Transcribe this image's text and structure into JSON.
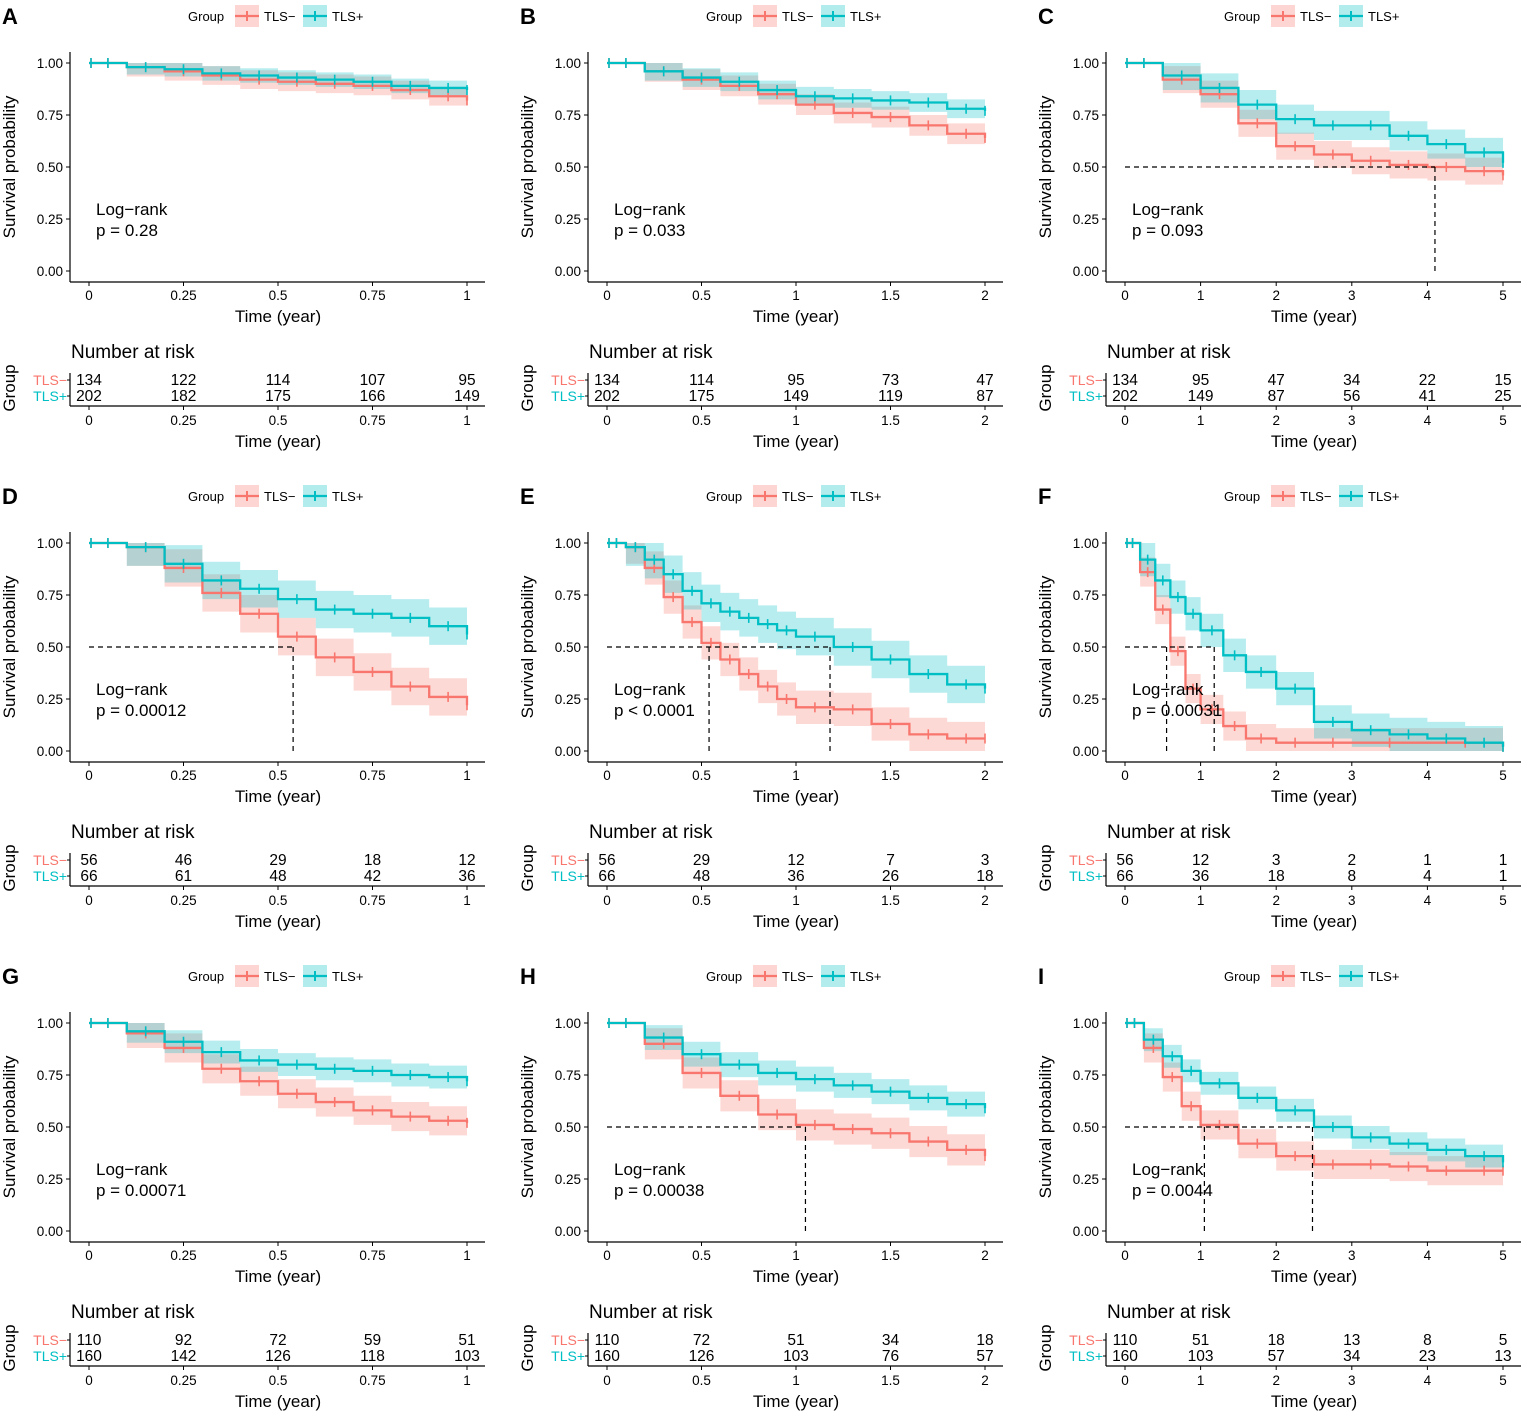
{
  "colors": {
    "tls_neg": "#F8766D",
    "tls_pos": "#00BFC4",
    "tls_neg_band": "#F8766D",
    "tls_pos_band": "#00BFC4"
  },
  "legend": {
    "title": "Group",
    "labels": [
      "TLS−",
      "TLS+"
    ]
  },
  "common": {
    "ylabel": "Survival probability",
    "xlabel": "Time (year)",
    "risk_title": "Number at risk",
    "risk_group_label": "Group",
    "risk_row_labels": [
      "TLS−",
      "TLS+"
    ],
    "y_ticks": [
      "1.00",
      "0.75",
      "0.50",
      "0.25",
      "0.00"
    ],
    "y_tick_values": [
      1.0,
      0.75,
      0.5,
      0.25,
      0.0
    ]
  },
  "chart_data": [
    {
      "panel": "A",
      "type": "line",
      "xlabel": "Time (year)",
      "ylabel": "Survival probability",
      "xlim": [
        0,
        1
      ],
      "ylim": [
        0,
        1
      ],
      "x_ticks": [
        "0",
        "0.25",
        "0.5",
        "0.75",
        "1"
      ],
      "x_tick_values": [
        0,
        0.25,
        0.5,
        0.75,
        1
      ],
      "logrank_label": "Log−rank",
      "p_text": "p = 0.28",
      "medians": [],
      "series": [
        {
          "name": "TLS−",
          "x": [
            0,
            0.1,
            0.2,
            0.3,
            0.4,
            0.5,
            0.6,
            0.7,
            0.8,
            0.9,
            1.0
          ],
          "y": [
            1.0,
            0.98,
            0.96,
            0.94,
            0.92,
            0.91,
            0.9,
            0.89,
            0.87,
            0.84,
            0.82
          ],
          "band": 0.045
        },
        {
          "name": "TLS+",
          "x": [
            0,
            0.1,
            0.2,
            0.3,
            0.4,
            0.5,
            0.6,
            0.7,
            0.8,
            0.9,
            1.0
          ],
          "y": [
            1.0,
            0.98,
            0.97,
            0.95,
            0.94,
            0.93,
            0.92,
            0.91,
            0.89,
            0.88,
            0.87
          ],
          "band": 0.035
        }
      ],
      "risk": {
        "TLS−": [
          "134",
          "122",
          "114",
          "107",
          "95"
        ],
        "TLS+": [
          "202",
          "182",
          "175",
          "166",
          "149"
        ]
      }
    },
    {
      "panel": "B",
      "type": "line",
      "xlabel": "Time (year)",
      "ylabel": "Survival probability",
      "xlim": [
        0,
        2
      ],
      "ylim": [
        0,
        1
      ],
      "x_ticks": [
        "0",
        "0.5",
        "1",
        "1.5",
        "2"
      ],
      "x_tick_values": [
        0,
        0.5,
        1,
        1.5,
        2
      ],
      "logrank_label": "Log−rank",
      "p_text": "p = 0.033",
      "medians": [],
      "series": [
        {
          "name": "TLS−",
          "x": [
            0,
            0.2,
            0.4,
            0.6,
            0.8,
            1.0,
            1.2,
            1.4,
            1.6,
            1.8,
            2.0
          ],
          "y": [
            1.0,
            0.96,
            0.92,
            0.89,
            0.85,
            0.8,
            0.76,
            0.74,
            0.7,
            0.66,
            0.64
          ],
          "band": 0.05
        },
        {
          "name": "TLS+",
          "x": [
            0,
            0.2,
            0.4,
            0.6,
            0.8,
            1.0,
            1.2,
            1.4,
            1.6,
            1.8,
            2.0
          ],
          "y": [
            1.0,
            0.96,
            0.93,
            0.91,
            0.87,
            0.84,
            0.83,
            0.82,
            0.81,
            0.78,
            0.77
          ],
          "band": 0.045
        }
      ],
      "risk": {
        "TLS−": [
          "134",
          "114",
          "95",
          "73",
          "47"
        ],
        "TLS+": [
          "202",
          "175",
          "149",
          "119",
          "87"
        ]
      }
    },
    {
      "panel": "C",
      "type": "line",
      "xlabel": "Time (year)",
      "ylabel": "Survival probability",
      "xlim": [
        0,
        5
      ],
      "ylim": [
        0,
        1
      ],
      "x_ticks": [
        "0",
        "1",
        "2",
        "3",
        "4",
        "5"
      ],
      "x_tick_values": [
        0,
        1,
        2,
        3,
        4,
        5
      ],
      "logrank_label": "Log−rank",
      "p_text": "p = 0.093",
      "medians": [
        4.1
      ],
      "series": [
        {
          "name": "TLS−",
          "x": [
            0,
            0.5,
            1.0,
            1.5,
            2.0,
            2.5,
            3.0,
            3.5,
            4.0,
            4.5,
            5.0
          ],
          "y": [
            1.0,
            0.92,
            0.85,
            0.71,
            0.6,
            0.56,
            0.53,
            0.51,
            0.5,
            0.48,
            0.46
          ],
          "band": 0.065
        },
        {
          "name": "TLS+",
          "x": [
            0,
            0.5,
            1.0,
            1.5,
            2.0,
            2.5,
            3.0,
            3.5,
            4.0,
            4.5,
            5.0
          ],
          "y": [
            1.0,
            0.94,
            0.88,
            0.8,
            0.73,
            0.7,
            0.7,
            0.65,
            0.61,
            0.57,
            0.52
          ],
          "band": 0.07
        }
      ],
      "risk": {
        "TLS−": [
          "134",
          "95",
          "47",
          "34",
          "22",
          "15"
        ],
        "TLS+": [
          "202",
          "149",
          "87",
          "56",
          "41",
          "25"
        ]
      }
    },
    {
      "panel": "D",
      "type": "line",
      "xlabel": "Time (year)",
      "ylabel": "Survival probability",
      "xlim": [
        0,
        1
      ],
      "ylim": [
        0,
        1
      ],
      "x_ticks": [
        "0",
        "0.25",
        "0.5",
        "0.75",
        "1"
      ],
      "x_tick_values": [
        0,
        0.25,
        0.5,
        0.75,
        1
      ],
      "logrank_label": "Log−rank",
      "p_text": "p = 0.00012",
      "medians": [
        0.54
      ],
      "series": [
        {
          "name": "TLS−",
          "x": [
            0,
            0.1,
            0.2,
            0.3,
            0.4,
            0.5,
            0.6,
            0.7,
            0.8,
            0.9,
            1.0
          ],
          "y": [
            1.0,
            0.98,
            0.88,
            0.76,
            0.66,
            0.55,
            0.45,
            0.38,
            0.31,
            0.26,
            0.22
          ],
          "band": 0.09
        },
        {
          "name": "TLS+",
          "x": [
            0,
            0.1,
            0.2,
            0.3,
            0.4,
            0.5,
            0.6,
            0.7,
            0.8,
            0.9,
            1.0
          ],
          "y": [
            1.0,
            0.98,
            0.9,
            0.82,
            0.78,
            0.73,
            0.68,
            0.66,
            0.64,
            0.6,
            0.56
          ],
          "band": 0.09
        }
      ],
      "risk": {
        "TLS−": [
          "56",
          "46",
          "29",
          "18",
          "12"
        ],
        "TLS+": [
          "66",
          "61",
          "48",
          "42",
          "36"
        ]
      }
    },
    {
      "panel": "E",
      "type": "line",
      "xlabel": "Time (year)",
      "ylabel": "Survival probability",
      "xlim": [
        0,
        2
      ],
      "ylim": [
        0,
        1
      ],
      "x_ticks": [
        "0",
        "0.5",
        "1",
        "1.5",
        "2"
      ],
      "x_tick_values": [
        0,
        0.5,
        1,
        1.5,
        2
      ],
      "logrank_label": "Log−rank",
      "p_text": "p < 0.0001",
      "medians": [
        0.54,
        1.18
      ],
      "series": [
        {
          "name": "TLS−",
          "x": [
            0,
            0.1,
            0.2,
            0.3,
            0.4,
            0.5,
            0.6,
            0.7,
            0.8,
            0.9,
            1.0,
            1.2,
            1.4,
            1.6,
            1.8,
            2.0
          ],
          "y": [
            1.0,
            0.98,
            0.88,
            0.74,
            0.62,
            0.52,
            0.44,
            0.37,
            0.31,
            0.25,
            0.21,
            0.2,
            0.13,
            0.08,
            0.06,
            0.06
          ],
          "band": 0.08
        },
        {
          "name": "TLS+",
          "x": [
            0,
            0.1,
            0.2,
            0.3,
            0.4,
            0.5,
            0.6,
            0.7,
            0.8,
            0.9,
            1.0,
            1.2,
            1.4,
            1.6,
            1.8,
            2.0
          ],
          "y": [
            1.0,
            0.98,
            0.92,
            0.85,
            0.77,
            0.71,
            0.67,
            0.64,
            0.61,
            0.58,
            0.55,
            0.5,
            0.44,
            0.37,
            0.32,
            0.3
          ],
          "band": 0.09
        }
      ],
      "risk": {
        "TLS−": [
          "56",
          "29",
          "12",
          "7",
          "3"
        ],
        "TLS+": [
          "66",
          "48",
          "36",
          "26",
          "18"
        ]
      }
    },
    {
      "panel": "F",
      "type": "line",
      "xlabel": "Time (year)",
      "ylabel": "Survival probability",
      "xlim": [
        0,
        5
      ],
      "ylim": [
        0,
        1
      ],
      "x_ticks": [
        "0",
        "1",
        "2",
        "3",
        "4",
        "5"
      ],
      "x_tick_values": [
        0,
        1,
        2,
        3,
        4,
        5
      ],
      "logrank_label": "Log−rank",
      "p_text": "p = 0.00031",
      "medians": [
        0.55,
        1.18
      ],
      "series": [
        {
          "name": "TLS−",
          "x": [
            0,
            0.2,
            0.4,
            0.6,
            0.8,
            1.0,
            1.3,
            1.6,
            2.0,
            2.5,
            3.0,
            4.0,
            5.0
          ],
          "y": [
            1.0,
            0.86,
            0.68,
            0.48,
            0.3,
            0.2,
            0.12,
            0.06,
            0.04,
            0.04,
            0.04,
            0.04,
            0.02
          ],
          "band": 0.07
        },
        {
          "name": "TLS+",
          "x": [
            0,
            0.2,
            0.4,
            0.6,
            0.8,
            1.0,
            1.3,
            1.6,
            2.0,
            2.5,
            3.0,
            3.5,
            4.0,
            4.5,
            5.0
          ],
          "y": [
            1.0,
            0.92,
            0.82,
            0.74,
            0.66,
            0.58,
            0.46,
            0.38,
            0.3,
            0.14,
            0.1,
            0.08,
            0.06,
            0.04,
            0.02
          ],
          "band": 0.08
        }
      ],
      "risk": {
        "TLS−": [
          "56",
          "12",
          "3",
          "2",
          "1",
          "1"
        ],
        "TLS+": [
          "66",
          "36",
          "18",
          "8",
          "4",
          "1"
        ]
      }
    },
    {
      "panel": "G",
      "type": "line",
      "xlabel": "Time (year)",
      "ylabel": "Survival probability",
      "xlim": [
        0,
        1
      ],
      "ylim": [
        0,
        1
      ],
      "x_ticks": [
        "0",
        "0.25",
        "0.5",
        "0.75",
        "1"
      ],
      "x_tick_values": [
        0,
        0.25,
        0.5,
        0.75,
        1
      ],
      "logrank_label": "Log−rank",
      "p_text": "p = 0.00071",
      "medians": [],
      "series": [
        {
          "name": "TLS−",
          "x": [
            0,
            0.1,
            0.2,
            0.3,
            0.4,
            0.5,
            0.6,
            0.7,
            0.8,
            0.9,
            1.0
          ],
          "y": [
            1.0,
            0.95,
            0.88,
            0.78,
            0.72,
            0.66,
            0.62,
            0.58,
            0.55,
            0.53,
            0.52
          ],
          "band": 0.07
        },
        {
          "name": "TLS+",
          "x": [
            0,
            0.1,
            0.2,
            0.3,
            0.4,
            0.5,
            0.6,
            0.7,
            0.8,
            0.9,
            1.0
          ],
          "y": [
            1.0,
            0.96,
            0.91,
            0.86,
            0.82,
            0.8,
            0.78,
            0.77,
            0.75,
            0.74,
            0.72
          ],
          "band": 0.055
        }
      ],
      "risk": {
        "TLS−": [
          "110",
          "92",
          "72",
          "59",
          "51"
        ],
        "TLS+": [
          "160",
          "142",
          "126",
          "118",
          "103"
        ]
      }
    },
    {
      "panel": "H",
      "type": "line",
      "xlabel": "Time (year)",
      "ylabel": "Survival probability",
      "xlim": [
        0,
        2
      ],
      "ylim": [
        0,
        1
      ],
      "x_ticks": [
        "0",
        "0.5",
        "1",
        "1.5",
        "2"
      ],
      "x_tick_values": [
        0,
        0.5,
        1,
        1.5,
        2
      ],
      "logrank_label": "Log−rank",
      "p_text": "p = 0.00038",
      "medians": [
        1.05
      ],
      "series": [
        {
          "name": "TLS−",
          "x": [
            0,
            0.2,
            0.4,
            0.6,
            0.8,
            1.0,
            1.2,
            1.4,
            1.6,
            1.8,
            2.0
          ],
          "y": [
            1.0,
            0.9,
            0.76,
            0.65,
            0.56,
            0.51,
            0.49,
            0.47,
            0.43,
            0.39,
            0.36
          ],
          "band": 0.075
        },
        {
          "name": "TLS+",
          "x": [
            0,
            0.2,
            0.4,
            0.6,
            0.8,
            1.0,
            1.2,
            1.4,
            1.6,
            1.8,
            2.0
          ],
          "y": [
            1.0,
            0.93,
            0.85,
            0.8,
            0.76,
            0.73,
            0.7,
            0.67,
            0.64,
            0.61,
            0.59
          ],
          "band": 0.06
        }
      ],
      "risk": {
        "TLS−": [
          "110",
          "72",
          "51",
          "34",
          "18"
        ],
        "TLS+": [
          "160",
          "126",
          "103",
          "76",
          "57"
        ]
      }
    },
    {
      "panel": "I",
      "type": "line",
      "xlabel": "Time (year)",
      "ylabel": "Survival probability",
      "xlim": [
        0,
        5
      ],
      "ylim": [
        0,
        1
      ],
      "x_ticks": [
        "0",
        "1",
        "2",
        "3",
        "4",
        "5"
      ],
      "x_tick_values": [
        0,
        1,
        2,
        3,
        4,
        5
      ],
      "logrank_label": "Log−rank",
      "p_text": "p = 0.0044",
      "medians": [
        1.05,
        2.48
      ],
      "series": [
        {
          "name": "TLS−",
          "x": [
            0,
            0.25,
            0.5,
            0.75,
            1.0,
            1.5,
            2.0,
            2.5,
            3.0,
            3.5,
            4.0,
            4.5,
            5.0
          ],
          "y": [
            1.0,
            0.88,
            0.74,
            0.6,
            0.51,
            0.42,
            0.36,
            0.32,
            0.32,
            0.31,
            0.29,
            0.29,
            0.29
          ],
          "band": 0.07
        },
        {
          "name": "TLS+",
          "x": [
            0,
            0.25,
            0.5,
            0.75,
            1.0,
            1.5,
            2.0,
            2.5,
            3.0,
            3.5,
            4.0,
            4.5,
            5.0
          ],
          "y": [
            1.0,
            0.92,
            0.84,
            0.77,
            0.71,
            0.64,
            0.58,
            0.5,
            0.45,
            0.42,
            0.39,
            0.36,
            0.33
          ],
          "band": 0.055
        }
      ],
      "risk": {
        "TLS−": [
          "110",
          "51",
          "18",
          "13",
          "8",
          "5"
        ],
        "TLS+": [
          "160",
          "103",
          "57",
          "34",
          "23",
          "13"
        ]
      }
    }
  ]
}
